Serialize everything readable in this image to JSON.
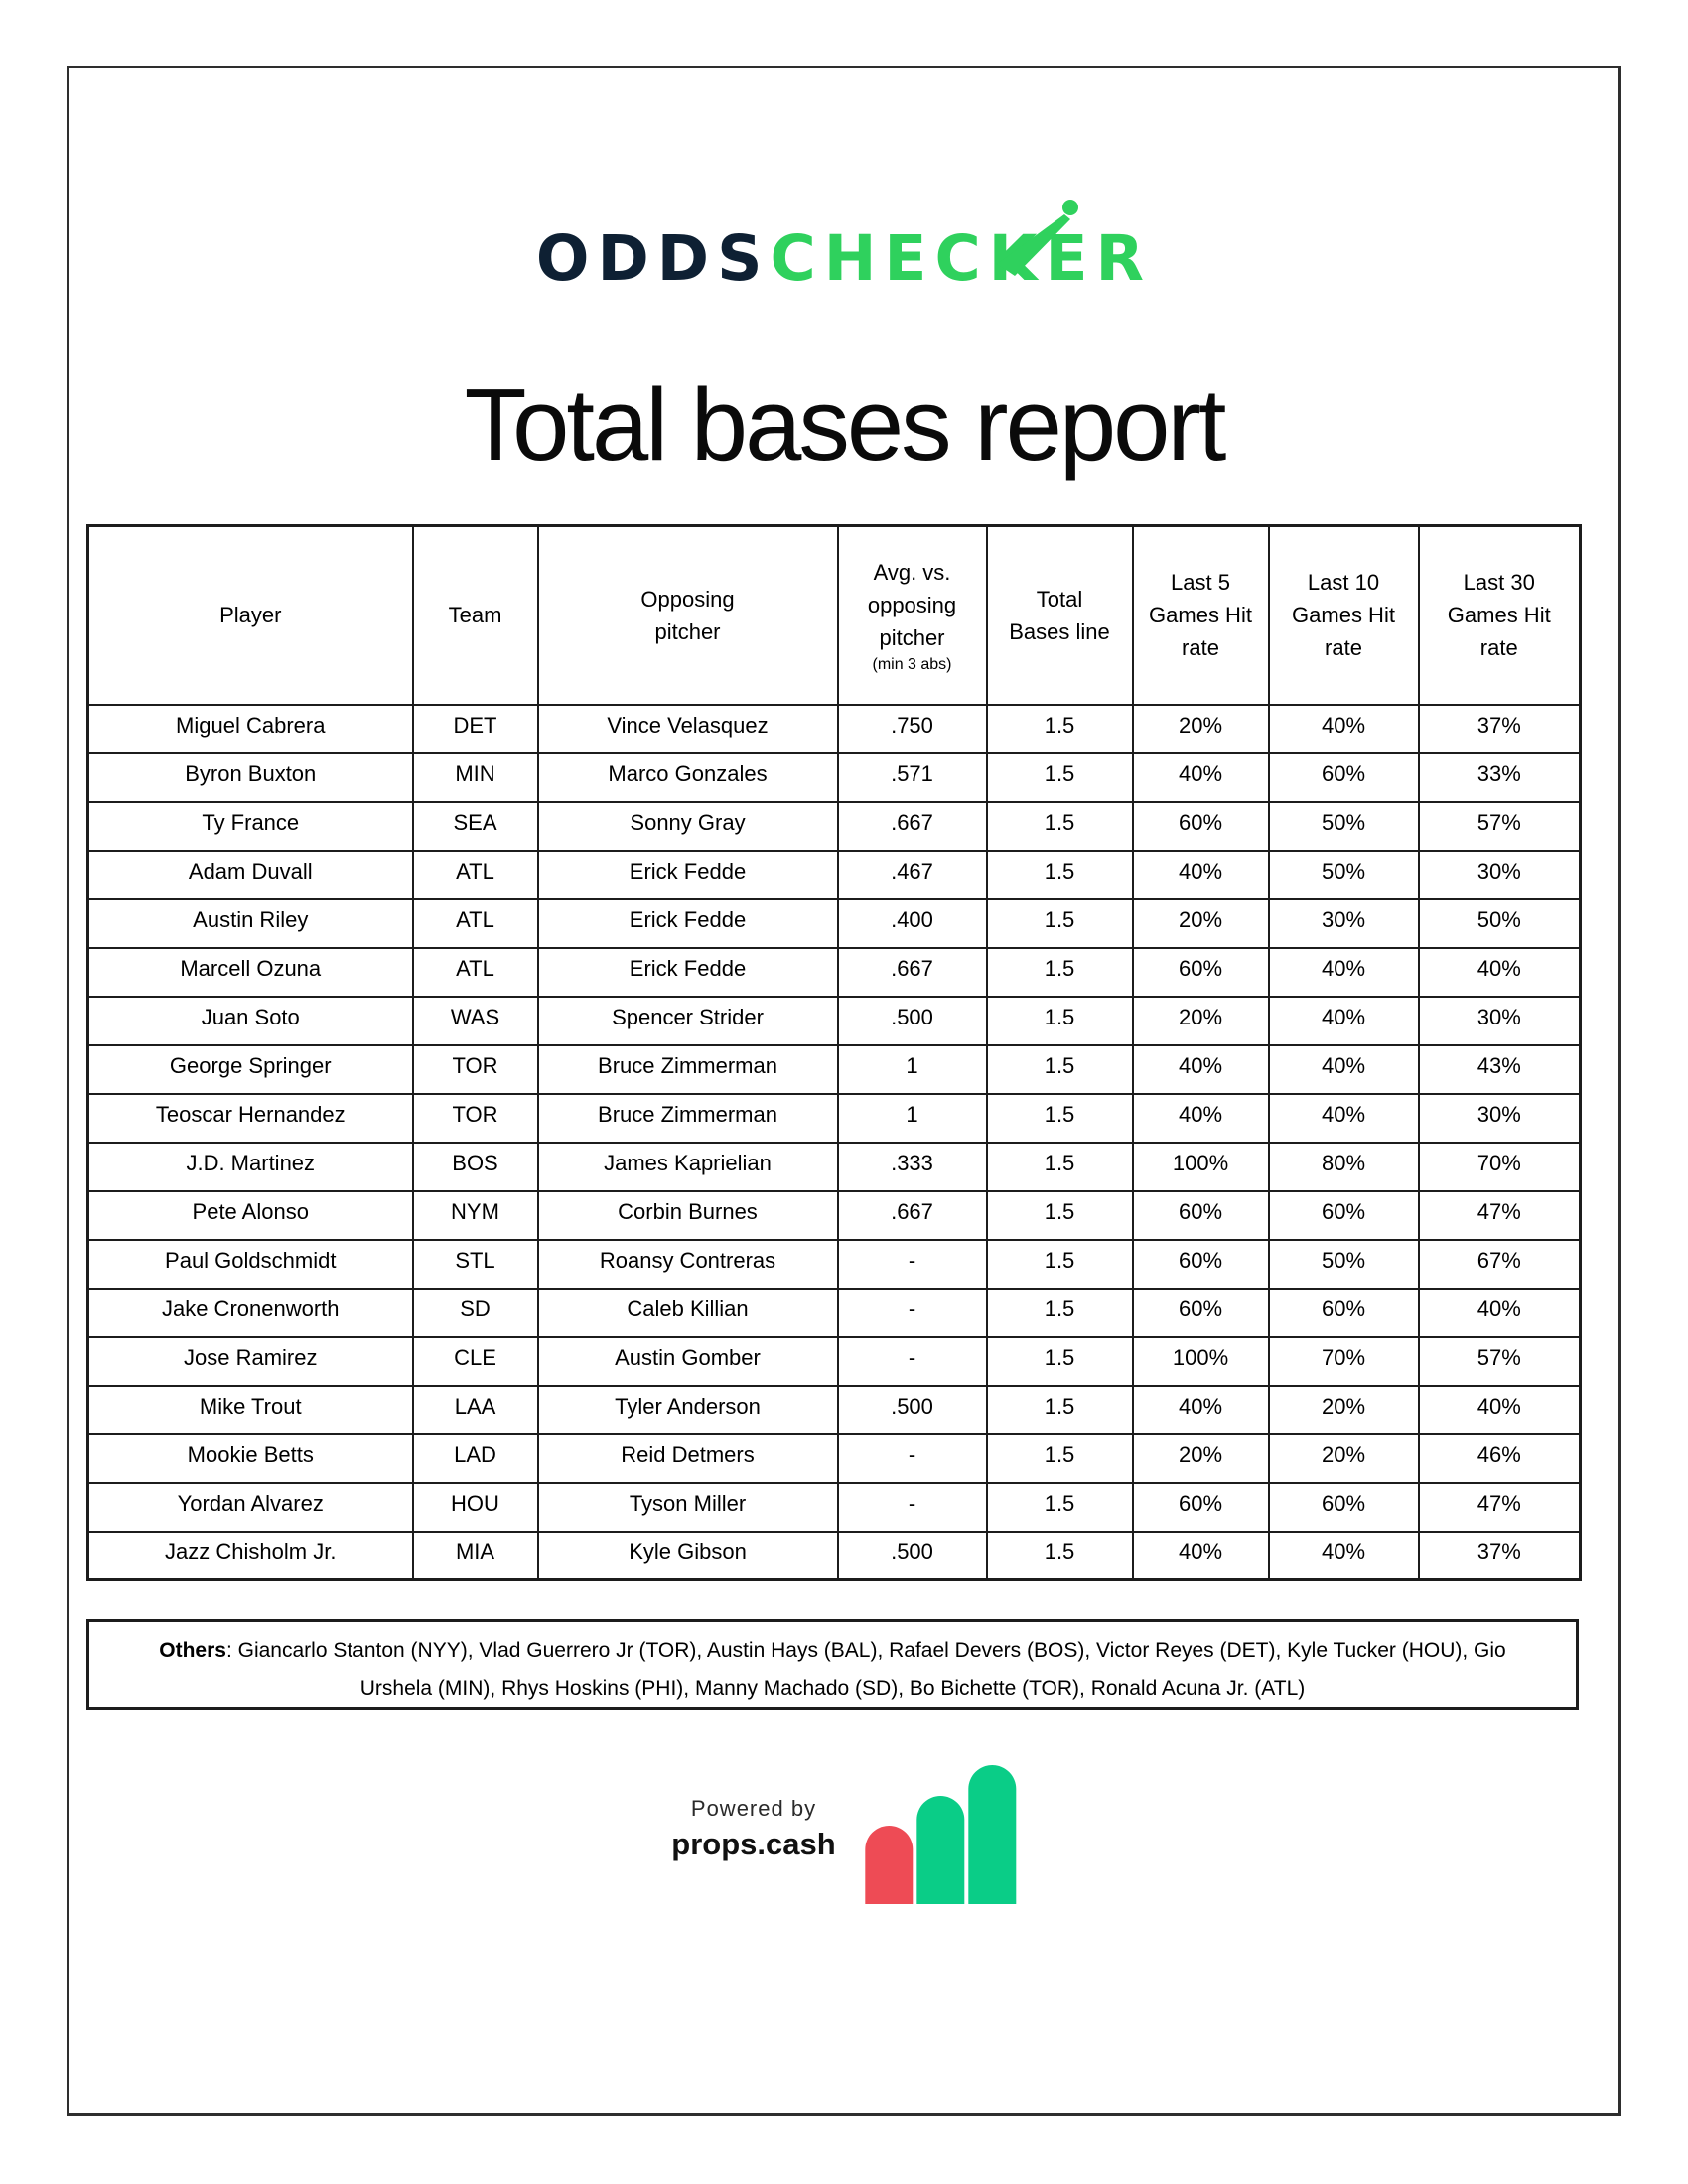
{
  "page": {
    "title": "Total bases report"
  },
  "logo": {
    "text_dark": "ODDS",
    "text_green": "CHECKER"
  },
  "colors": {
    "logo_navy": "#0e2033",
    "logo_green": "#2fd15d",
    "bar_red": "#ee4b55",
    "bar_green": "#0acd87"
  },
  "table": {
    "columns": [
      {
        "key": "player",
        "label": "Player"
      },
      {
        "key": "team",
        "label": "Team"
      },
      {
        "key": "pitcher",
        "label": "Opposing pitcher"
      },
      {
        "key": "avg",
        "label": "Avg. vs. opposing pitcher",
        "subnote": "(min 3 abs)"
      },
      {
        "key": "line",
        "label": "Total Bases line"
      },
      {
        "key": "hit5",
        "label": "Last 5 Games Hit rate"
      },
      {
        "key": "hit10",
        "label": "Last 10 Games Hit rate"
      },
      {
        "key": "hit30",
        "label": "Last 30 Games Hit rate"
      }
    ],
    "rows": [
      {
        "player": "Miguel Cabrera",
        "team": "DET",
        "pitcher": "Vince Velasquez",
        "avg": ".750",
        "line": "1.5",
        "hit5": "20%",
        "hit10": "40%",
        "hit30": "37%"
      },
      {
        "player": "Byron Buxton",
        "team": "MIN",
        "pitcher": "Marco Gonzales",
        "avg": ".571",
        "line": "1.5",
        "hit5": "40%",
        "hit10": "60%",
        "hit30": "33%"
      },
      {
        "player": "Ty France",
        "team": "SEA",
        "pitcher": "Sonny Gray",
        "avg": ".667",
        "line": "1.5",
        "hit5": "60%",
        "hit10": "50%",
        "hit30": "57%"
      },
      {
        "player": "Adam Duvall",
        "team": "ATL",
        "pitcher": "Erick Fedde",
        "avg": ".467",
        "line": "1.5",
        "hit5": "40%",
        "hit10": "50%",
        "hit30": "30%"
      },
      {
        "player": "Austin Riley",
        "team": "ATL",
        "pitcher": "Erick Fedde",
        "avg": ".400",
        "line": "1.5",
        "hit5": "20%",
        "hit10": "30%",
        "hit30": "50%"
      },
      {
        "player": "Marcell Ozuna",
        "team": "ATL",
        "pitcher": "Erick Fedde",
        "avg": ".667",
        "line": "1.5",
        "hit5": "60%",
        "hit10": "40%",
        "hit30": "40%"
      },
      {
        "player": "Juan Soto",
        "team": "WAS",
        "pitcher": "Spencer Strider",
        "avg": ".500",
        "line": "1.5",
        "hit5": "20%",
        "hit10": "40%",
        "hit30": "30%"
      },
      {
        "player": "George Springer",
        "team": "TOR",
        "pitcher": "Bruce Zimmerman",
        "avg": "1",
        "line": "1.5",
        "hit5": "40%",
        "hit10": "40%",
        "hit30": "43%"
      },
      {
        "player": "Teoscar Hernandez",
        "team": "TOR",
        "pitcher": "Bruce Zimmerman",
        "avg": "1",
        "line": "1.5",
        "hit5": "40%",
        "hit10": "40%",
        "hit30": "30%"
      },
      {
        "player": "J.D. Martinez",
        "team": "BOS",
        "pitcher": "James Kaprielian",
        "avg": ".333",
        "line": "1.5",
        "hit5": "100%",
        "hit10": "80%",
        "hit30": "70%"
      },
      {
        "player": "Pete Alonso",
        "team": "NYM",
        "pitcher": "Corbin Burnes",
        "avg": ".667",
        "line": "1.5",
        "hit5": "60%",
        "hit10": "60%",
        "hit30": "47%"
      },
      {
        "player": "Paul Goldschmidt",
        "team": "STL",
        "pitcher": "Roansy Contreras",
        "avg": "-",
        "line": "1.5",
        "hit5": "60%",
        "hit10": "50%",
        "hit30": "67%"
      },
      {
        "player": "Jake Cronenworth",
        "team": "SD",
        "pitcher": "Caleb Killian",
        "avg": "-",
        "line": "1.5",
        "hit5": "60%",
        "hit10": "60%",
        "hit30": "40%"
      },
      {
        "player": "Jose Ramirez",
        "team": "CLE",
        "pitcher": "Austin Gomber",
        "avg": "-",
        "line": "1.5",
        "hit5": "100%",
        "hit10": "70%",
        "hit30": "57%"
      },
      {
        "player": "Mike Trout",
        "team": "LAA",
        "pitcher": "Tyler Anderson",
        "avg": ".500",
        "line": "1.5",
        "hit5": "40%",
        "hit10": "20%",
        "hit30": "40%"
      },
      {
        "player": "Mookie Betts",
        "team": "LAD",
        "pitcher": "Reid Detmers",
        "avg": "-",
        "line": "1.5",
        "hit5": "20%",
        "hit10": "20%",
        "hit30": "46%"
      },
      {
        "player": "Yordan Alvarez",
        "team": "HOU",
        "pitcher": "Tyson Miller",
        "avg": "-",
        "line": "1.5",
        "hit5": "60%",
        "hit10": "60%",
        "hit30": "47%"
      },
      {
        "player": "Jazz Chisholm Jr.",
        "team": "MIA",
        "pitcher": "Kyle Gibson",
        "avg": ".500",
        "line": "1.5",
        "hit5": "40%",
        "hit10": "40%",
        "hit30": "37%"
      }
    ],
    "others": {
      "label": "Others",
      "text": ": Giancarlo Stanton (NYY), Vlad Guerrero Jr (TOR), Austin Hays (BAL), Rafael Devers (BOS), Victor Reyes (DET), Kyle Tucker (HOU), Gio Urshela (MIN), Rhys Hoskins (PHI), Manny Machado (SD), Bo Bichette (TOR), Ronald Acuna Jr. (ATL)"
    }
  },
  "footer": {
    "powered_by": "Powered by",
    "brand": "props.cash"
  }
}
